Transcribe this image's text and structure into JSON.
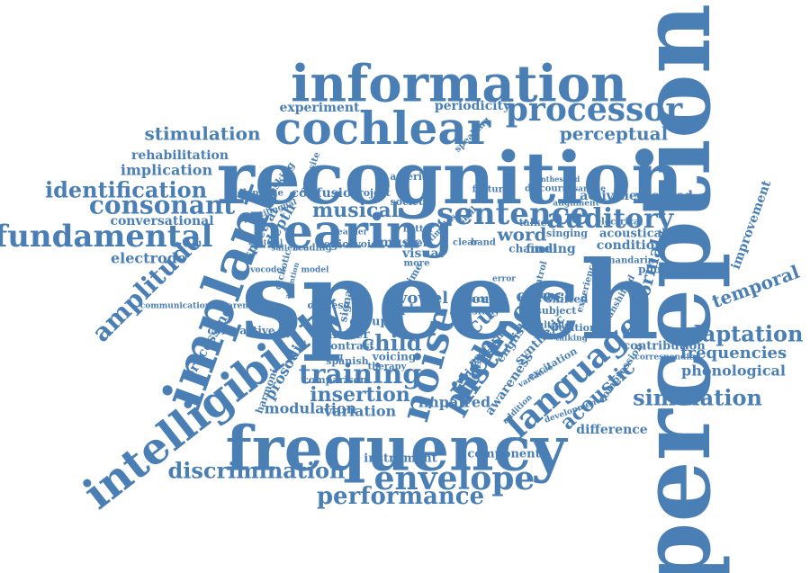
{
  "color": "#4a7fb5",
  "words": [
    {
      "id": "perception",
      "text": "perception"
    },
    {
      "id": "speech",
      "text": "speech"
    },
    {
      "id": "recognition",
      "text": "recognition"
    },
    {
      "id": "information",
      "text": "information"
    },
    {
      "id": "frequency",
      "text": "frequency"
    },
    {
      "id": "cochlear",
      "text": "cochlear"
    },
    {
      "id": "hearing",
      "text": "hearing"
    },
    {
      "id": "implant",
      "text": "implant"
    },
    {
      "id": "intelligibility",
      "text": "intelligibility"
    },
    {
      "id": "noise",
      "text": "noise"
    },
    {
      "id": "processor",
      "text": "processor"
    },
    {
      "id": "fundamental",
      "text": "fundamental"
    },
    {
      "id": "envelope",
      "text": "envelope"
    },
    {
      "id": "sentence",
      "text": "sentence"
    },
    {
      "id": "language",
      "text": "language"
    },
    {
      "id": "listener",
      "text": "listener"
    },
    {
      "id": "training",
      "text": "training"
    },
    {
      "id": "auditory",
      "text": "auditory"
    },
    {
      "id": "consonant",
      "text": "consonant"
    },
    {
      "id": "identification",
      "text": "identification"
    },
    {
      "id": "amplitude",
      "text": "amplitude"
    },
    {
      "id": "discrimination",
      "text": "discrimination"
    },
    {
      "id": "performance",
      "text": "performance"
    },
    {
      "id": "pitch",
      "text": "pitch"
    },
    {
      "id": "simulation",
      "text": "simulation"
    },
    {
      "id": "adaptation",
      "text": "adaptation"
    },
    {
      "id": "stimulation",
      "text": "stimulation"
    },
    {
      "id": "perceptual",
      "text": "perceptual"
    },
    {
      "id": "musical",
      "text": "musical"
    },
    {
      "id": "child",
      "text": "child"
    },
    {
      "id": "insertion",
      "text": "insertion"
    },
    {
      "id": "cue",
      "text": "cue"
    },
    {
      "id": "word",
      "text": "word"
    },
    {
      "id": "effect",
      "text": "effect"
    },
    {
      "id": "acoustic",
      "text": "acoustic"
    },
    {
      "id": "temporal",
      "text": "temporal"
    },
    {
      "id": "frequencies",
      "text": "frequencies"
    },
    {
      "id": "phonological",
      "text": "phonological"
    },
    {
      "id": "electrode",
      "text": "electrode"
    },
    {
      "id": "implication",
      "text": "implication"
    },
    {
      "id": "rehabilitation",
      "text": "rehabilitation"
    },
    {
      "id": "conversational",
      "text": "conversational"
    },
    {
      "id": "experiment",
      "text": "experiment"
    },
    {
      "id": "periodicity",
      "text": "periodicity"
    },
    {
      "id": "normal",
      "text": "normal"
    },
    {
      "id": "vowel",
      "text": "vowel"
    },
    {
      "id": "prosodic",
      "text": "prosodic"
    },
    {
      "id": "processing",
      "text": "processing"
    },
    {
      "id": "modulation",
      "text": "modulation"
    },
    {
      "id": "variation",
      "text": "variation"
    },
    {
      "id": "impaired",
      "text": "impaired"
    },
    {
      "id": "instrument",
      "text": "instrument"
    },
    {
      "id": "component",
      "text": "component"
    },
    {
      "id": "difference",
      "text": "difference"
    },
    {
      "id": "improvement",
      "text": "improvement"
    },
    {
      "id": "activities",
      "text": "activities"
    },
    {
      "id": "vocoded",
      "text": "vocoded"
    },
    {
      "id": "finding",
      "text": "finding"
    },
    {
      "id": "condition",
      "text": "condition"
    },
    {
      "id": "acoustical",
      "text": "acoustical"
    },
    {
      "id": "contribution",
      "text": "contribution"
    },
    {
      "id": "depth",
      "text": "depth"
    },
    {
      "id": "spectral",
      "text": "spectral"
    },
    {
      "id": "confusion",
      "text": "confusion"
    },
    {
      "id": "region",
      "text": "region"
    },
    {
      "id": "music",
      "text": "music"
    },
    {
      "id": "visual",
      "text": "visual"
    },
    {
      "id": "sound",
      "text": "sound"
    },
    {
      "id": "number",
      "text": "number"
    },
    {
      "id": "contrastive",
      "text": "contrastive"
    },
    {
      "id": "voicing",
      "text": "voicing"
    },
    {
      "id": "phoneme",
      "text": "phoneme"
    },
    {
      "id": "channel",
      "text": "channel"
    },
    {
      "id": "synthetic",
      "text": "synthetic"
    },
    {
      "id": "english",
      "text": "english"
    },
    {
      "id": "position",
      "text": "position"
    },
    {
      "id": "shifted",
      "text": "shifted"
    },
    {
      "id": "focus",
      "text": "focus"
    },
    {
      "id": "subject",
      "text": "subject"
    },
    {
      "id": "talker",
      "text": "talker"
    },
    {
      "id": "singing",
      "text": "singing"
    },
    {
      "id": "awareness",
      "text": "awareness"
    },
    {
      "id": "excitation",
      "text": "excitation"
    },
    {
      "id": "compression",
      "text": "compression"
    },
    {
      "id": "place",
      "text": "place"
    },
    {
      "id": "group",
      "text": "group"
    },
    {
      "id": "contrast",
      "text": "contrast"
    },
    {
      "id": "pattern",
      "text": "pattern"
    },
    {
      "id": "voiceless",
      "text": "voiceless"
    },
    {
      "id": "comparison",
      "text": "comparison"
    },
    {
      "id": "spanish",
      "text": "spanish"
    },
    {
      "id": "naming",
      "text": "naming"
    },
    {
      "id": "telephone",
      "text": "telephone"
    },
    {
      "id": "masking",
      "text": "masking"
    },
    {
      "id": "society",
      "text": "society"
    },
    {
      "id": "america",
      "text": "america"
    },
    {
      "id": "project",
      "text": "project"
    },
    {
      "id": "opposite",
      "text": "opposite"
    },
    {
      "id": "face",
      "text": "face"
    },
    {
      "id": "multiple",
      "text": "multiple"
    },
    {
      "id": "harmonic",
      "text": "harmonic"
    },
    {
      "id": "chinese",
      "text": "chinese"
    },
    {
      "id": "signal",
      "text": "signal"
    },
    {
      "id": "voice",
      "text": "voice"
    },
    {
      "id": "reading",
      "text": "reading"
    },
    {
      "id": "salience",
      "text": "salience"
    },
    {
      "id": "learner",
      "text": "learner"
    },
    {
      "id": "clear",
      "text": "clear"
    },
    {
      "id": "band",
      "text": "band"
    },
    {
      "id": "user",
      "text": "user"
    },
    {
      "id": "more",
      "text": "more"
    },
    {
      "id": "electrical",
      "text": "electrical"
    },
    {
      "id": "mandarin",
      "text": "mandarin"
    },
    {
      "id": "corresponding",
      "text": "corresponding"
    },
    {
      "id": "discourse",
      "text": "discourse"
    },
    {
      "id": "feature",
      "text": "feature"
    },
    {
      "id": "alignment",
      "text": "alignment"
    },
    {
      "id": "sample",
      "text": "sample"
    },
    {
      "id": "communication",
      "text": "communication"
    },
    {
      "id": "parental",
      "text": "parental"
    },
    {
      "id": "dichotic",
      "text": "dichotic"
    },
    {
      "id": "vocoder",
      "text": "vocoder"
    },
    {
      "id": "attention",
      "text": "attention"
    },
    {
      "id": "experience",
      "text": "experience"
    },
    {
      "id": "control",
      "text": "control"
    },
    {
      "id": "skill",
      "text": "skill"
    },
    {
      "id": "talking",
      "text": "talking"
    },
    {
      "id": "developmental",
      "text": "developmental"
    },
    {
      "id": "addition",
      "text": "addition"
    },
    {
      "id": "variance",
      "text": "variance"
    },
    {
      "id": "speaking",
      "text": "speaking"
    },
    {
      "id": "better",
      "text": "better"
    },
    {
      "id": "therapy",
      "text": "therapy"
    },
    {
      "id": "error",
      "text": "error"
    },
    {
      "id": "study",
      "text": "study"
    },
    {
      "id": "result",
      "text": "result"
    },
    {
      "id": "unshifted",
      "text": "unshifted"
    },
    {
      "id": "multilingual",
      "text": "multilingual"
    },
    {
      "id": "synthesized",
      "text": "synthesized"
    },
    {
      "id": "bilateral",
      "text": "bilateral"
    },
    {
      "id": "stimulus",
      "text": "stimulus"
    },
    {
      "id": "model",
      "text": "model"
    },
    {
      "id": "time",
      "text": "time"
    }
  ]
}
